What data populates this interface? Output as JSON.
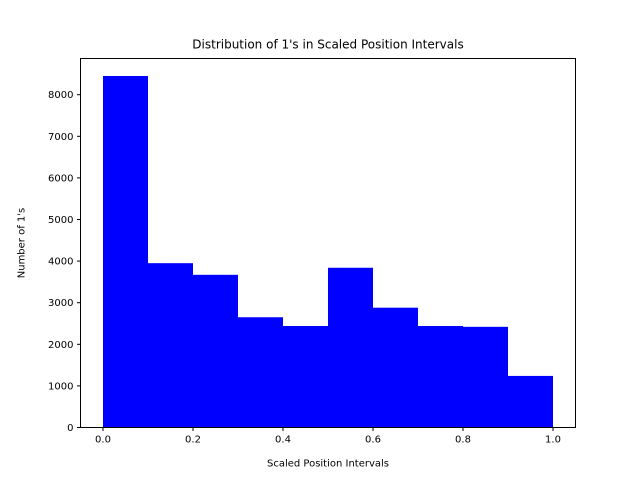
{
  "chart_data": {
    "type": "bar",
    "title": "Distribution of 1's in Scaled Position Intervals",
    "xlabel": "Scaled Position Intervals",
    "ylabel": "Number of 1's",
    "bin_edges": [
      0.0,
      0.1,
      0.2,
      0.3,
      0.4,
      0.5,
      0.6,
      0.7,
      0.8,
      0.9,
      1.0
    ],
    "values": [
      8450,
      3950,
      3670,
      2650,
      2440,
      3840,
      2880,
      2440,
      2420,
      1240
    ],
    "xlim": [
      -0.05,
      1.05
    ],
    "ylim": [
      0,
      8870
    ],
    "xticks": [
      0.0,
      0.2,
      0.4,
      0.6,
      0.8,
      1.0
    ],
    "xtick_labels": [
      "0.0",
      "0.2",
      "0.4",
      "0.6",
      "0.8",
      "1.0"
    ],
    "yticks": [
      0,
      1000,
      2000,
      3000,
      4000,
      5000,
      6000,
      7000,
      8000
    ],
    "ytick_labels": [
      "0",
      "1000",
      "2000",
      "3000",
      "4000",
      "5000",
      "6000",
      "7000",
      "8000"
    ],
    "bar_color": "#0000ff",
    "grid": false,
    "legend": "none"
  }
}
